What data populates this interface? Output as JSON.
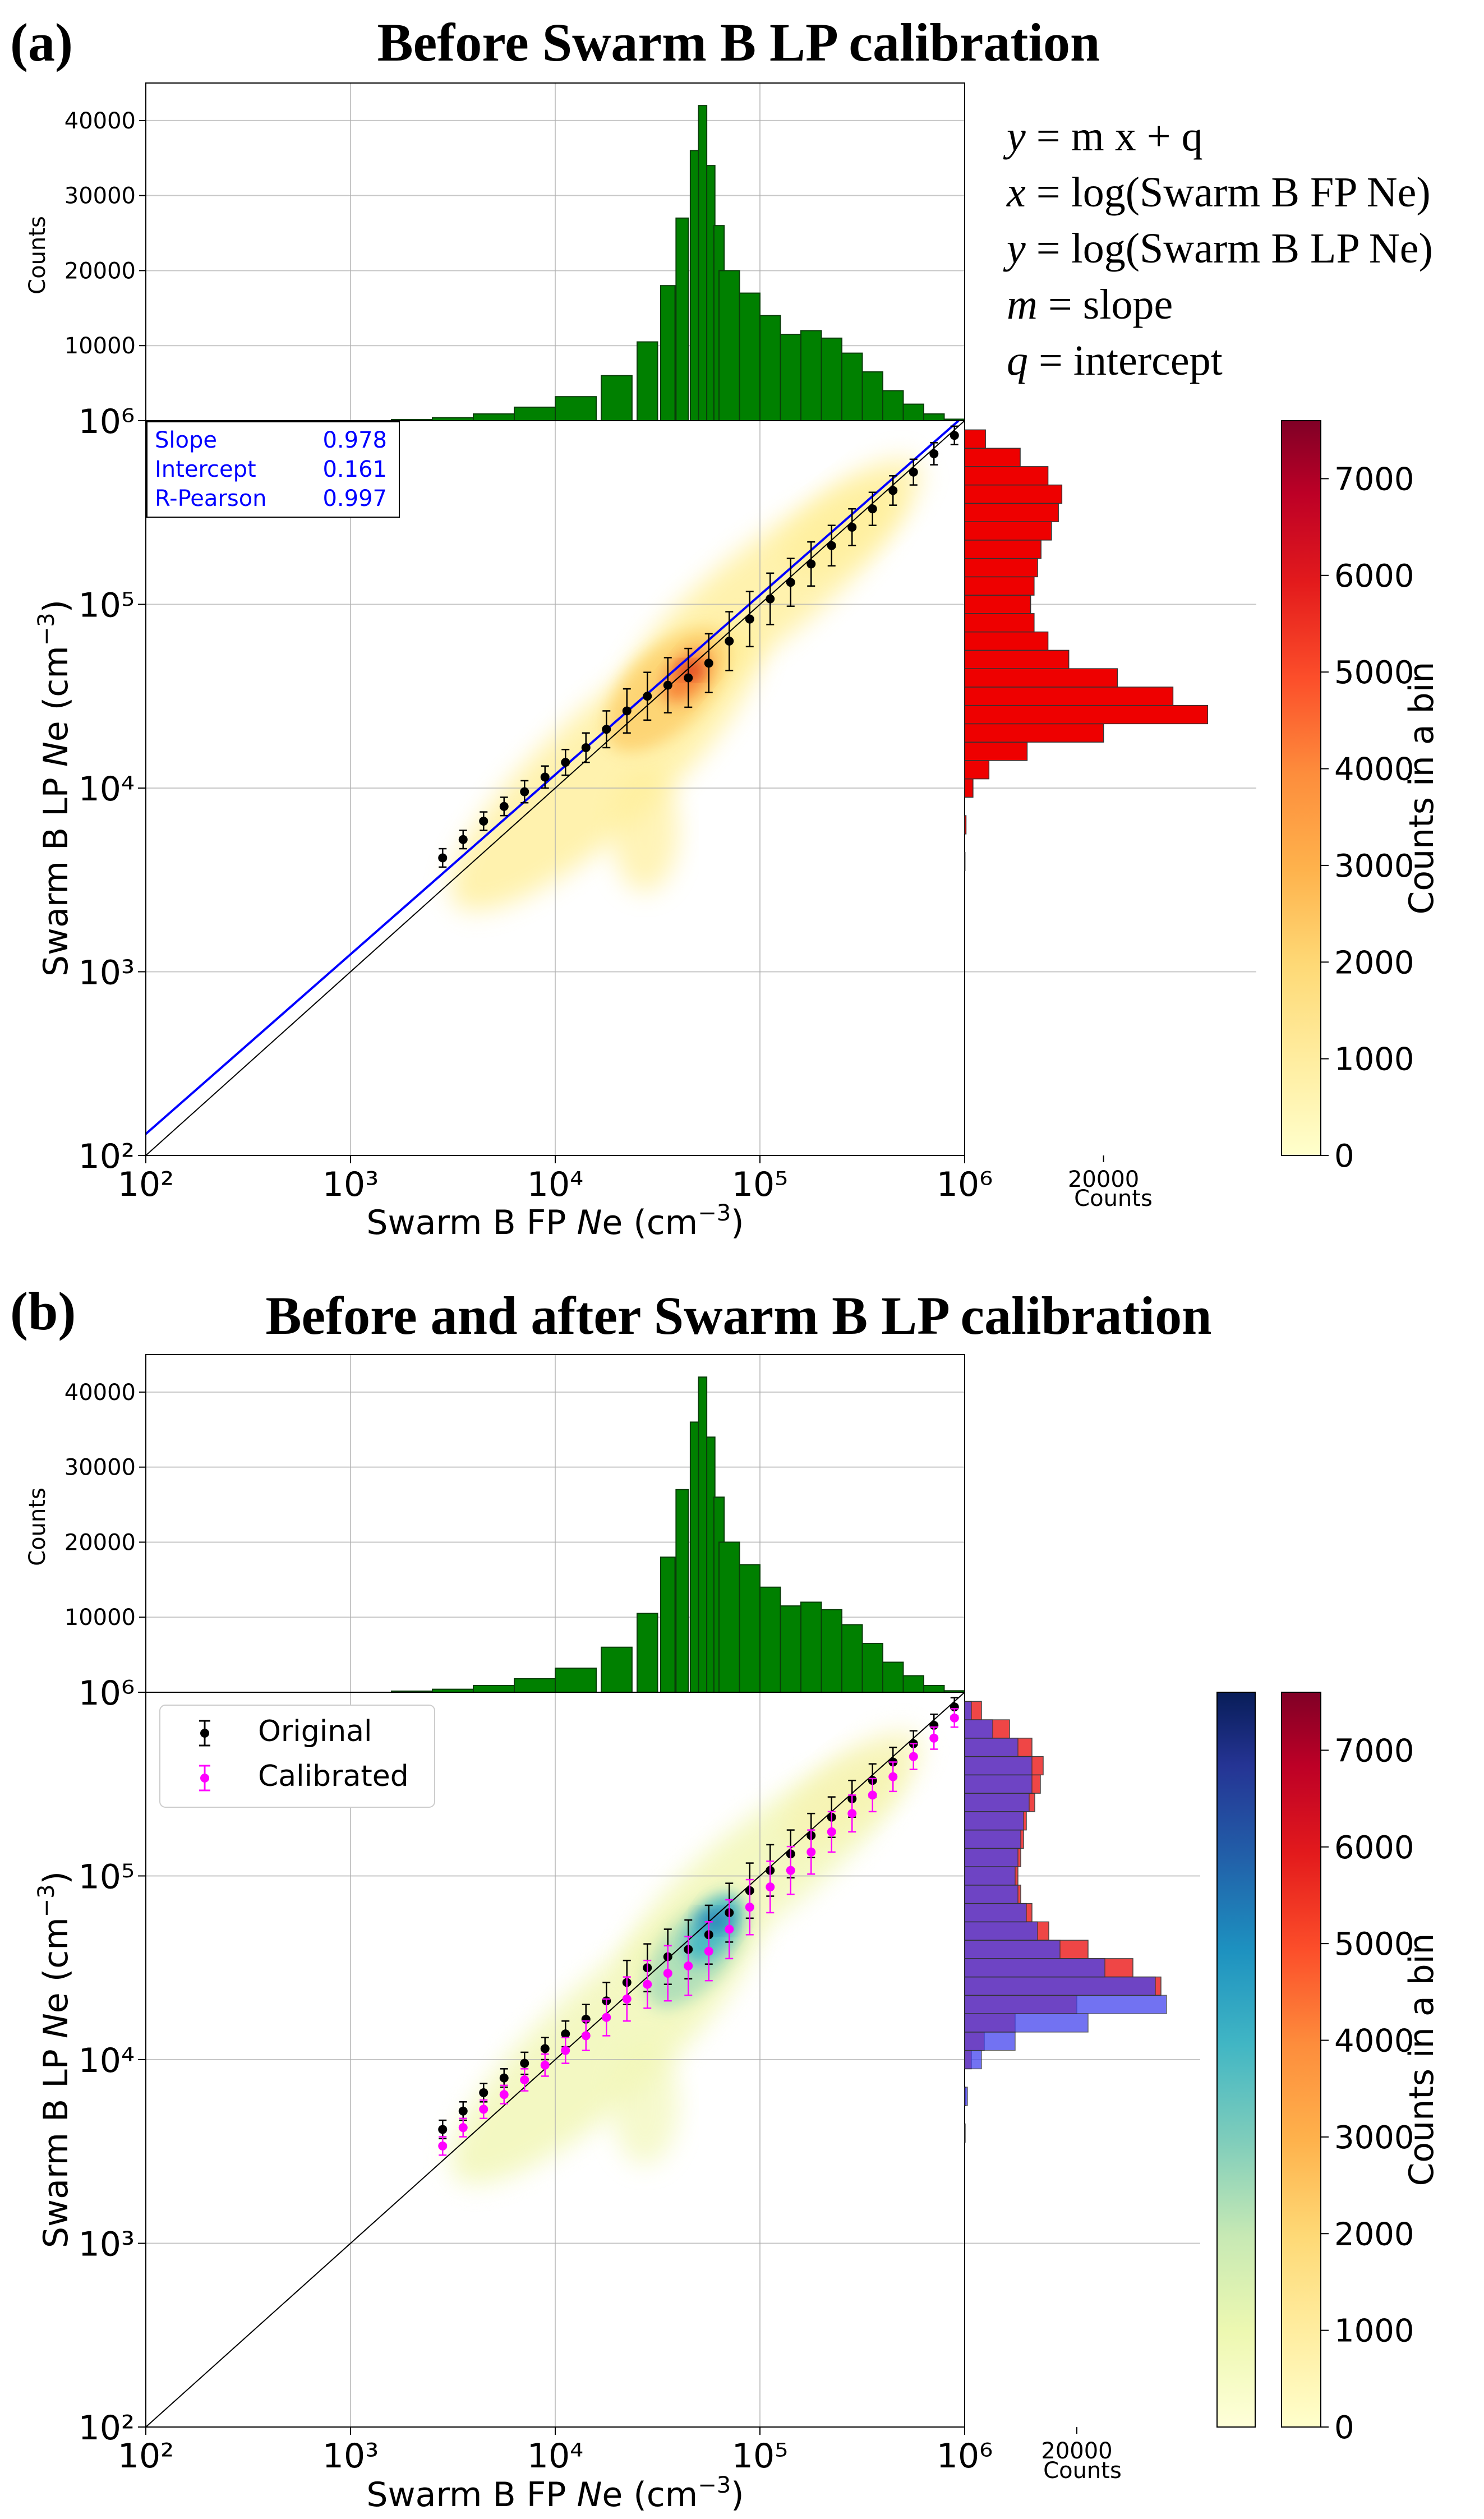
{
  "chart_data": [
    {
      "type": "scatter",
      "panel_label": "(a)",
      "title": "Before Swarm B LP calibration",
      "xlabel": "Swarm B FP Ne (cm⁻³)",
      "ylabel": "Swarm B LP Ne (cm⁻³)",
      "xscale": "log",
      "yscale": "log",
      "xlim": [
        100,
        1000000
      ],
      "ylim": [
        100,
        1000000
      ],
      "x_ticks": [
        "10²",
        "10³",
        "10⁴",
        "10⁵",
        "10⁶"
      ],
      "y_ticks": [
        "10²",
        "10³",
        "10⁴",
        "10⁵",
        "10⁶"
      ],
      "top_hist": {
        "ylabel": "Counts",
        "color": "#008000",
        "ylim": [
          0,
          45000
        ],
        "ticks": [
          "10000",
          "20000",
          "30000",
          "40000"
        ],
        "log10_x": [
          3.3,
          3.5,
          3.7,
          3.9,
          4.1,
          4.3,
          4.45,
          4.55,
          4.62,
          4.68,
          4.72,
          4.76,
          4.8,
          4.85,
          4.95,
          5.05,
          5.15,
          5.25,
          5.35,
          5.45,
          5.55,
          5.65,
          5.75,
          5.85,
          5.95
        ],
        "counts": [
          150,
          400,
          900,
          1800,
          3200,
          6000,
          10500,
          18000,
          27000,
          36000,
          42000,
          34000,
          26000,
          20000,
          17000,
          14000,
          11500,
          12000,
          11000,
          9000,
          6500,
          4000,
          2200,
          900,
          200
        ]
      },
      "right_hist": {
        "xlabel": "Counts",
        "tick": "20000",
        "color": "#ee0000",
        "xlim": [
          0,
          42000
        ],
        "log10_y": [
          3.6,
          3.8,
          4.0,
          4.1,
          4.2,
          4.3,
          4.4,
          4.5,
          4.6,
          4.7,
          4.8,
          4.9,
          5.0,
          5.1,
          5.2,
          5.3,
          5.4,
          5.5,
          5.6,
          5.7,
          5.8,
          5.9
        ],
        "counts": [
          50,
          200,
          1200,
          3500,
          9000,
          20000,
          35000,
          30000,
          22000,
          15000,
          12000,
          10000,
          9500,
          10000,
          10500,
          11000,
          12500,
          13500,
          14000,
          12000,
          8000,
          3000
        ]
      },
      "colorbar": {
        "label": "Counts in a bin",
        "min": 0,
        "max": 7600,
        "ticks": [
          "0",
          "1000",
          "2000",
          "3000",
          "4000",
          "5000",
          "6000",
          "7000"
        ]
      },
      "fit_box": {
        "slope_label": "Slope",
        "slope": "0.978",
        "intercept_label": "Intercept",
        "intercept": "0.161",
        "r_label": "R-Pearson",
        "r": "0.997"
      },
      "fit_line": {
        "slope": 0.978,
        "intercept": 0.161
      },
      "equations": [
        {
          "lhs": "y",
          "rhs": "m x + q"
        },
        {
          "lhs": "x",
          "rhs": "log(Swarm B FP Ne)"
        },
        {
          "lhs": "y",
          "rhs": "log(Swarm B LP Ne)"
        },
        {
          "lhs": "m",
          "rhs": "slope"
        },
        {
          "lhs": "q",
          "rhs": "intercept"
        }
      ],
      "series": [
        {
          "name": "Original",
          "color": "#000000",
          "log10_x": [
            3.45,
            3.55,
            3.65,
            3.75,
            3.85,
            3.95,
            4.05,
            4.15,
            4.25,
            4.35,
            4.45,
            4.55,
            4.65,
            4.75,
            4.85,
            4.95,
            5.05,
            5.15,
            5.25,
            5.35,
            5.45,
            5.55,
            5.65,
            5.75,
            5.85,
            5.95
          ],
          "log10_y": [
            3.62,
            3.72,
            3.82,
            3.9,
            3.98,
            4.06,
            4.14,
            4.22,
            4.32,
            4.42,
            4.5,
            4.56,
            4.6,
            4.68,
            4.8,
            4.92,
            5.03,
            5.12,
            5.22,
            5.32,
            5.42,
            5.52,
            5.62,
            5.72,
            5.82,
            5.92
          ],
          "err_dex": [
            0.05,
            0.05,
            0.05,
            0.05,
            0.06,
            0.06,
            0.07,
            0.08,
            0.1,
            0.12,
            0.13,
            0.15,
            0.16,
            0.16,
            0.16,
            0.15,
            0.14,
            0.13,
            0.12,
            0.11,
            0.1,
            0.09,
            0.08,
            0.07,
            0.06,
            0.05
          ]
        }
      ]
    },
    {
      "type": "scatter",
      "panel_label": "(b)",
      "title": "Before and after Swarm B LP calibration",
      "xlabel": "Swarm B FP Ne (cm⁻³)",
      "ylabel": "Swarm B LP Ne (cm⁻³)",
      "xscale": "log",
      "yscale": "log",
      "xlim": [
        100,
        1000000
      ],
      "ylim": [
        100,
        1000000
      ],
      "x_ticks": [
        "10²",
        "10³",
        "10⁴",
        "10⁵",
        "10⁶"
      ],
      "y_ticks": [
        "10²",
        "10³",
        "10⁴",
        "10⁵",
        "10⁶"
      ],
      "top_hist": {
        "ylabel": "Counts",
        "color": "#008000",
        "ylim": [
          0,
          45000
        ],
        "ticks": [
          "10000",
          "20000",
          "30000",
          "40000"
        ],
        "log10_x": [
          3.3,
          3.5,
          3.7,
          3.9,
          4.1,
          4.3,
          4.45,
          4.55,
          4.62,
          4.68,
          4.72,
          4.76,
          4.8,
          4.85,
          4.95,
          5.05,
          5.15,
          5.25,
          5.35,
          5.45,
          5.55,
          5.65,
          5.75,
          5.85,
          5.95
        ],
        "counts": [
          150,
          400,
          900,
          1800,
          3200,
          6000,
          10500,
          18000,
          27000,
          36000,
          42000,
          34000,
          26000,
          20000,
          17000,
          14000,
          11500,
          12000,
          11000,
          9000,
          6500,
          4000,
          2200,
          900,
          200
        ]
      },
      "right_hist": {
        "xlabel": "Counts",
        "tick": "20000",
        "xlim": [
          0,
          42000
        ],
        "log10_y": [
          3.6,
          3.8,
          4.0,
          4.1,
          4.2,
          4.3,
          4.4,
          4.5,
          4.6,
          4.7,
          4.8,
          4.9,
          5.0,
          5.1,
          5.2,
          5.3,
          5.4,
          5.5,
          5.6,
          5.7,
          5.8,
          5.9
        ],
        "original_counts": [
          50,
          200,
          1200,
          3500,
          9000,
          20000,
          35000,
          30000,
          22000,
          15000,
          12000,
          10000,
          9500,
          10000,
          10500,
          11000,
          12500,
          13500,
          14000,
          12000,
          8000,
          3000
        ],
        "calibrated_counts": [
          100,
          500,
          3000,
          9000,
          22000,
          36000,
          34000,
          25000,
          17000,
          13000,
          11000,
          9500,
          9000,
          9500,
          10000,
          10500,
          11500,
          12000,
          12000,
          9500,
          5000,
          1200
        ],
        "original_color": "#ee3333",
        "calibrated_color": "#4444ee",
        "overlap_color": "#8833cc"
      },
      "colorbars": [
        {
          "colormap": "YlGnBu",
          "min": 0,
          "max": 7600
        },
        {
          "label": "Counts in a bin",
          "colormap": "YlOrRd",
          "min": 0,
          "max": 7600,
          "ticks": [
            "0",
            "1000",
            "2000",
            "3000",
            "4000",
            "5000",
            "6000",
            "7000"
          ]
        }
      ],
      "legend": {
        "position": "upper-left",
        "entries": [
          "Original",
          "Calibrated"
        ]
      },
      "series": [
        {
          "name": "Original",
          "color": "#000000",
          "log10_x": [
            3.45,
            3.55,
            3.65,
            3.75,
            3.85,
            3.95,
            4.05,
            4.15,
            4.25,
            4.35,
            4.45,
            4.55,
            4.65,
            4.75,
            4.85,
            4.95,
            5.05,
            5.15,
            5.25,
            5.35,
            5.45,
            5.55,
            5.65,
            5.75,
            5.85,
            5.95
          ],
          "log10_y": [
            3.62,
            3.72,
            3.82,
            3.9,
            3.98,
            4.06,
            4.14,
            4.22,
            4.32,
            4.42,
            4.5,
            4.56,
            4.6,
            4.68,
            4.8,
            4.92,
            5.03,
            5.12,
            5.22,
            5.32,
            5.42,
            5.52,
            5.62,
            5.72,
            5.82,
            5.92
          ],
          "err_dex": [
            0.05,
            0.05,
            0.05,
            0.05,
            0.06,
            0.06,
            0.07,
            0.08,
            0.1,
            0.12,
            0.13,
            0.15,
            0.16,
            0.16,
            0.16,
            0.15,
            0.14,
            0.13,
            0.12,
            0.11,
            0.1,
            0.09,
            0.08,
            0.07,
            0.06,
            0.05
          ]
        },
        {
          "name": "Calibrated",
          "color": "#ff00ff",
          "log10_x": [
            3.45,
            3.55,
            3.65,
            3.75,
            3.85,
            3.95,
            4.05,
            4.15,
            4.25,
            4.35,
            4.45,
            4.55,
            4.65,
            4.75,
            4.85,
            4.95,
            5.05,
            5.15,
            5.25,
            5.35,
            5.45,
            5.55,
            5.65,
            5.75,
            5.85,
            5.95
          ],
          "log10_y": [
            3.53,
            3.63,
            3.73,
            3.81,
            3.89,
            3.97,
            4.05,
            4.13,
            4.23,
            4.33,
            4.41,
            4.47,
            4.51,
            4.59,
            4.71,
            4.83,
            4.94,
            5.03,
            5.13,
            5.24,
            5.34,
            5.44,
            5.54,
            5.65,
            5.75,
            5.86
          ],
          "err_dex": [
            0.05,
            0.05,
            0.05,
            0.05,
            0.06,
            0.06,
            0.07,
            0.08,
            0.1,
            0.12,
            0.13,
            0.15,
            0.16,
            0.16,
            0.16,
            0.15,
            0.14,
            0.13,
            0.12,
            0.11,
            0.1,
            0.09,
            0.08,
            0.07,
            0.06,
            0.05
          ]
        }
      ]
    }
  ]
}
